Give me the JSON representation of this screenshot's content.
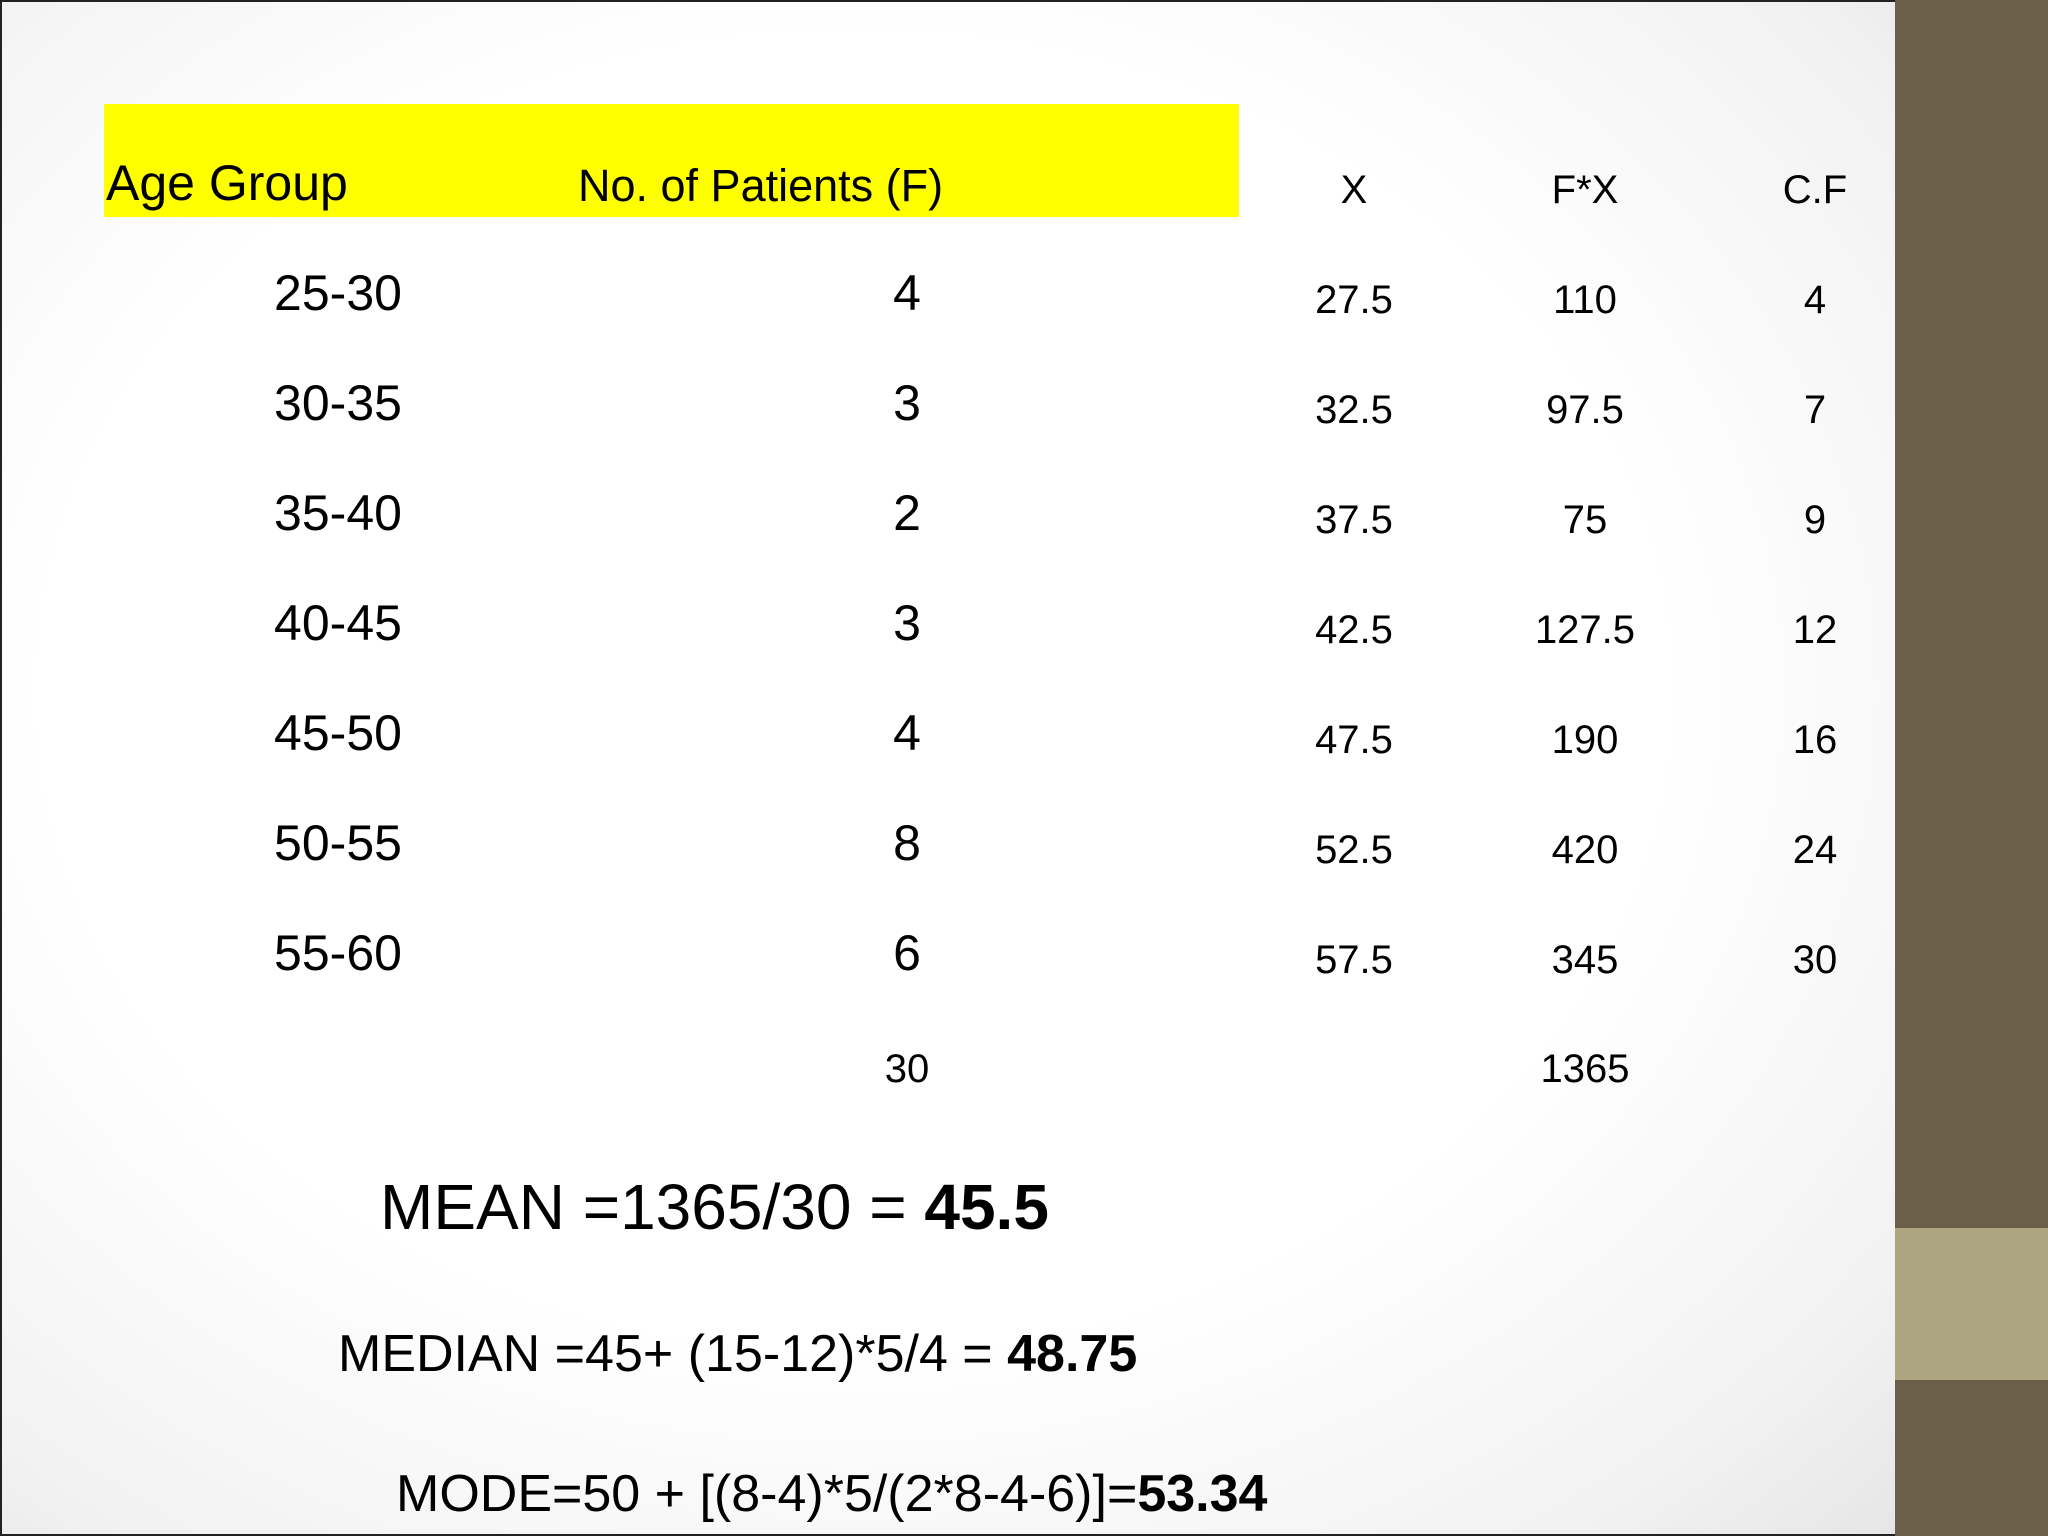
{
  "colors": {
    "header_highlight": "#ffff00",
    "side_band_dark": "#6b5f4a",
    "side_band_light": "#ada57f"
  },
  "table": {
    "headers": {
      "age_group": "Age Group",
      "patients": "No. of Patients (F)",
      "x": "X",
      "fx": "F*X",
      "cf": "C.F"
    },
    "rows": [
      {
        "age": "25-30",
        "f": "4",
        "x": "27.5",
        "fx": "110",
        "cf": "4"
      },
      {
        "age": "30-35",
        "f": "3",
        "x": "32.5",
        "fx": "97.5",
        "cf": "7"
      },
      {
        "age": "35-40",
        "f": "2",
        "x": "37.5",
        "fx": "75",
        "cf": "9"
      },
      {
        "age": "40-45",
        "f": "3",
        "x": "42.5",
        "fx": "127.5",
        "cf": "12"
      },
      {
        "age": "45-50",
        "f": "4",
        "x": "47.5",
        "fx": "190",
        "cf": "16"
      },
      {
        "age": "50-55",
        "f": "8",
        "x": "52.5",
        "fx": "420",
        "cf": "24"
      },
      {
        "age": "55-60",
        "f": "6",
        "x": "57.5",
        "fx": "345",
        "cf": "30"
      }
    ],
    "totals": {
      "f": "30",
      "fx": "1365"
    }
  },
  "formulas": {
    "mean_label": "MEAN =1365/30 = ",
    "mean_value": "45.5",
    "median_label": "MEDIAN =45+ (15-12)*5/4 = ",
    "median_value": "48.75",
    "mode_label": "MODE=50 + [(8-4)*5/(2*8-4-6)]=",
    "mode_value": "53.34"
  }
}
